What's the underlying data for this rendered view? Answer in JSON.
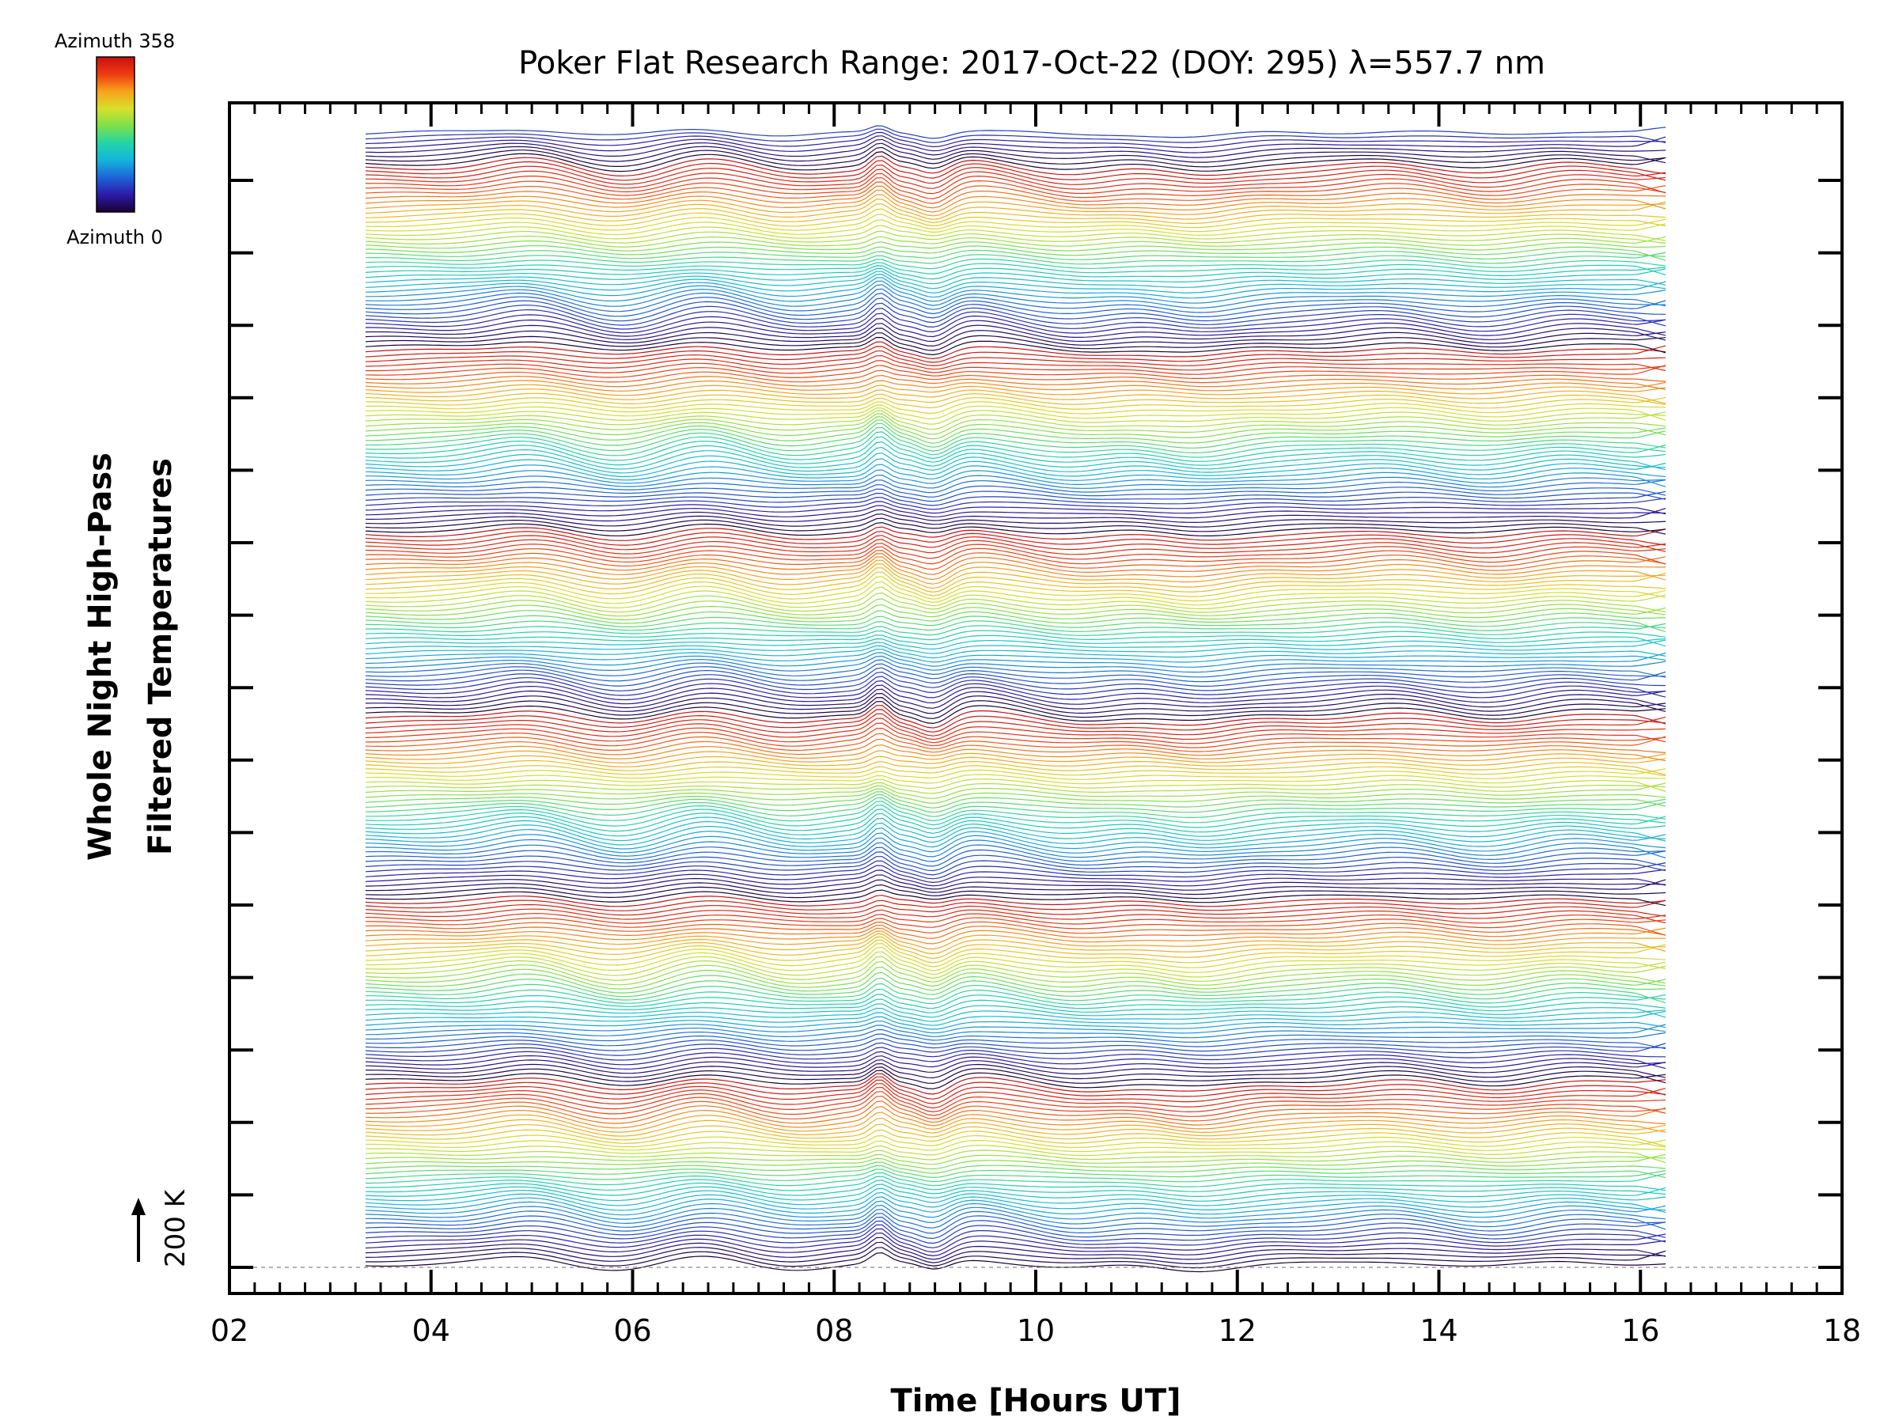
{
  "chart_data": {
    "type": "line",
    "title": "Poker Flat Research Range: 2017-Oct-22 (DOY: 295) λ=557.7 nm",
    "xlabel": "Time [Hours UT]",
    "ylabel_line1": "Whole Night High-Pass",
    "ylabel_line2": "Filtered Temperatures",
    "xlim": [
      2,
      18
    ],
    "x_tick_labels": [
      "02",
      "04",
      "06",
      "08",
      "10",
      "12",
      "14",
      "16",
      "18"
    ],
    "x_ticks": [
      2,
      4,
      6,
      8,
      10,
      12,
      14,
      16,
      18
    ],
    "x_minor_step": 0.25,
    "y_major_tick_count": 16,
    "data_x_range": [
      3.35,
      16.25
    ],
    "scale_bar_label": "200 K",
    "colorbar": {
      "top_label": "Azimuth 358",
      "bottom_label": "Azimuth 0",
      "colormap": "rainbow",
      "colors": [
        "#1a0033",
        "#2b1aa8",
        "#1e63d8",
        "#14b4dc",
        "#22d4a8",
        "#7ee04a",
        "#d8e02a",
        "#f7a21a",
        "#ee3a12",
        "#c81010"
      ],
      "azimuth_range": [
        0,
        358
      ]
    },
    "stacked_traces": {
      "count": 260,
      "azimuth_cycle": 42,
      "features": [
        {
          "time": 4.95,
          "amplitude": 12
        },
        {
          "time": 5.9,
          "amplitude": -10
        },
        {
          "time": 6.7,
          "amplitude": 12
        },
        {
          "time": 7.6,
          "amplitude": -8
        },
        {
          "time": 8.45,
          "amplitude": 18
        },
        {
          "time": 9.0,
          "amplitude": -16
        },
        {
          "time": 9.35,
          "amplitude": 10
        },
        {
          "time": 10.4,
          "amplitude": -8
        },
        {
          "time": 11.6,
          "amplitude": -10
        },
        {
          "time": 13.5,
          "amplitude": 6
        },
        {
          "time": 14.5,
          "amplitude": -6
        },
        {
          "time": 15.3,
          "amplitude": 6
        }
      ]
    }
  }
}
